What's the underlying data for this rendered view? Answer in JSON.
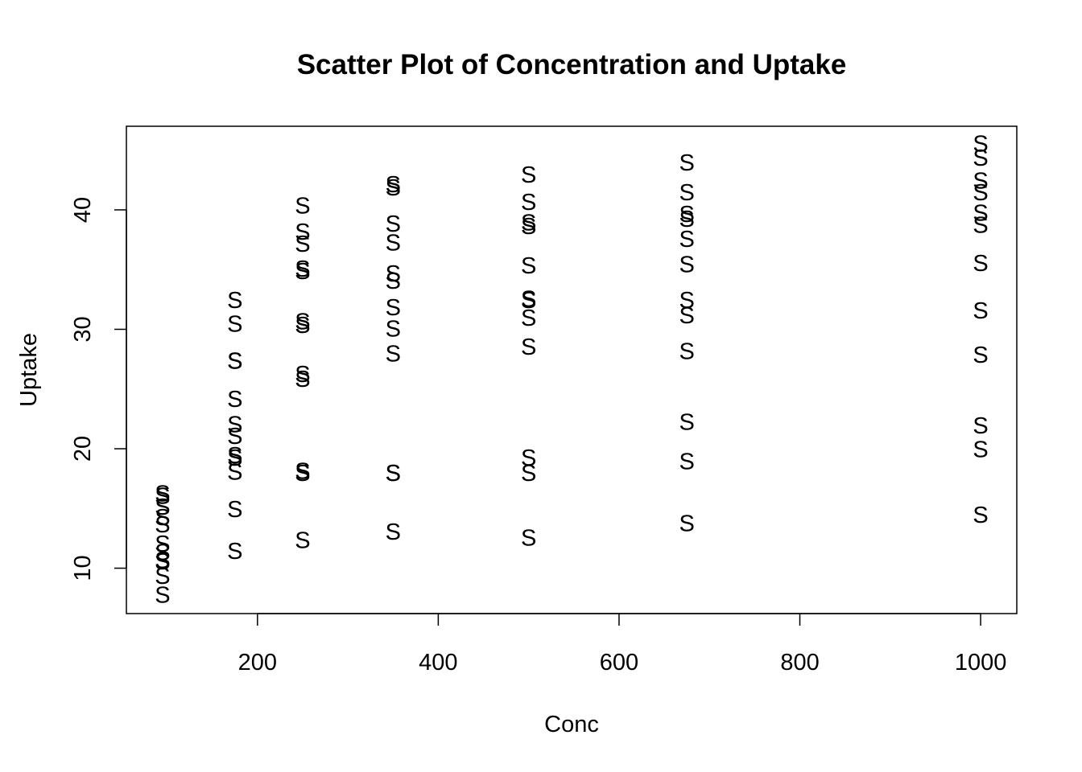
{
  "chart_data": {
    "type": "scatter",
    "title": "Scatter Plot of Concentration and Uptake",
    "xlabel": "Conc",
    "ylabel": "Uptake",
    "xlim": [
      55,
      1040
    ],
    "ylim": [
      6.2,
      47.0
    ],
    "x_ticks": [
      200,
      400,
      600,
      800,
      1000
    ],
    "y_ticks": [
      10,
      20,
      30,
      40
    ],
    "grid": false,
    "legend": "none",
    "marker": "S",
    "color": "#000000",
    "x": [
      95,
      95,
      95,
      95,
      95,
      95,
      95,
      95,
      95,
      95,
      95,
      95,
      175,
      175,
      175,
      175,
      175,
      175,
      175,
      175,
      175,
      175,
      175,
      175,
      250,
      250,
      250,
      250,
      250,
      250,
      250,
      250,
      250,
      250,
      250,
      250,
      350,
      350,
      350,
      350,
      350,
      350,
      350,
      350,
      350,
      350,
      350,
      350,
      500,
      500,
      500,
      500,
      500,
      500,
      500,
      500,
      500,
      500,
      500,
      500,
      675,
      675,
      675,
      675,
      675,
      675,
      675,
      675,
      675,
      675,
      675,
      675,
      1000,
      1000,
      1000,
      1000,
      1000,
      1000,
      1000,
      1000,
      1000,
      1000,
      1000,
      1000
    ],
    "y": [
      16.0,
      13.6,
      16.2,
      14.2,
      9.3,
      15.1,
      10.6,
      12.0,
      11.3,
      10.5,
      7.7,
      10.6,
      30.4,
      27.3,
      32.4,
      24.1,
      27.3,
      21.0,
      19.2,
      22.0,
      19.4,
      14.9,
      11.4,
      18.0,
      34.8,
      37.1,
      40.3,
      30.3,
      35.0,
      38.1,
      26.2,
      30.6,
      25.8,
      18.1,
      12.3,
      17.9,
      37.2,
      41.8,
      42.1,
      34.6,
      38.8,
      34.0,
      30.0,
      31.8,
      27.9,
      17.9,
      13.0,
      17.9,
      35.3,
      40.6,
      42.9,
      32.5,
      38.6,
      38.9,
      30.9,
      32.4,
      28.5,
      17.9,
      12.5,
      19.2,
      39.2,
      41.4,
      43.9,
      35.4,
      37.5,
      39.6,
      32.4,
      31.1,
      28.1,
      18.9,
      13.7,
      22.2,
      39.7,
      44.3,
      45.5,
      38.7,
      42.4,
      41.4,
      35.5,
      31.5,
      27.8,
      19.9,
      14.4,
      21.9
    ]
  }
}
